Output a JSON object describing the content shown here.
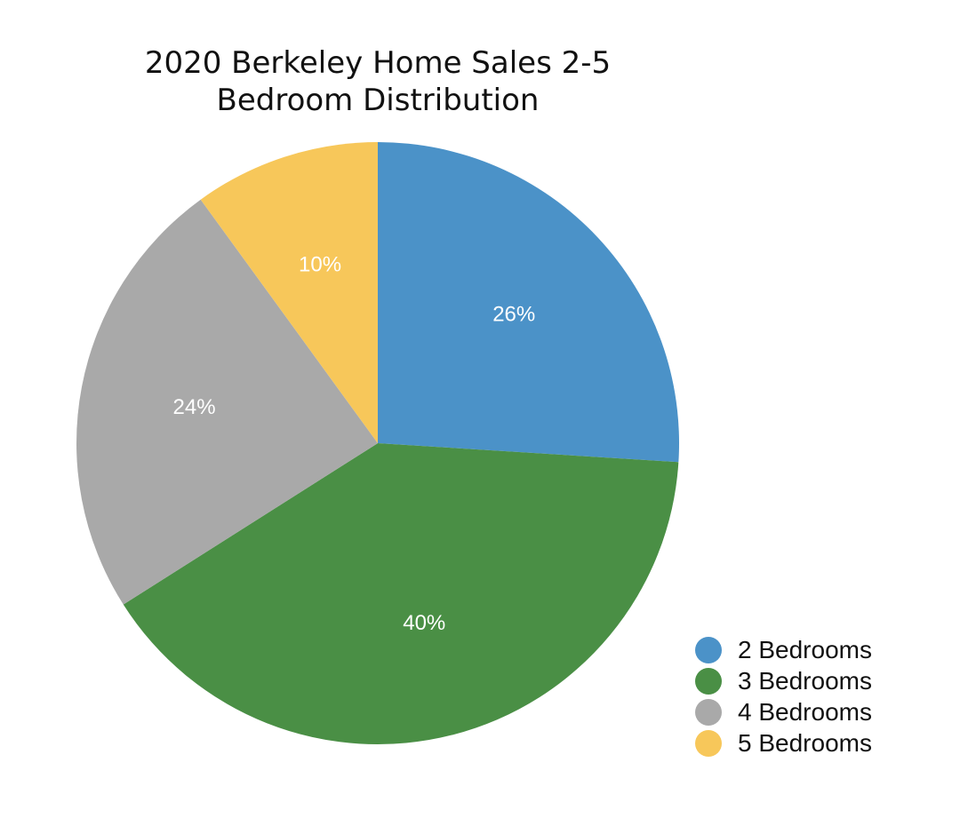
{
  "chart_data": {
    "type": "pie",
    "title_lines": [
      "2020 Berkeley Home Sales 2-5",
      "Bedroom Distribution"
    ],
    "slices": [
      {
        "label": "2 Bedrooms",
        "value": 26,
        "display": "26%",
        "color": "#4b92c8"
      },
      {
        "label": "3 Bedrooms",
        "value": 40,
        "display": "40%",
        "color": "#4a8f45"
      },
      {
        "label": "4 Bedrooms",
        "value": 24,
        "display": "24%",
        "color": "#a9a9a9"
      },
      {
        "label": "5 Bedrooms",
        "value": 10,
        "display": "10%",
        "color": "#f7c75a"
      }
    ],
    "start_angle": "12 o'clock",
    "direction": "clockwise",
    "legend_position": "bottom-right"
  }
}
